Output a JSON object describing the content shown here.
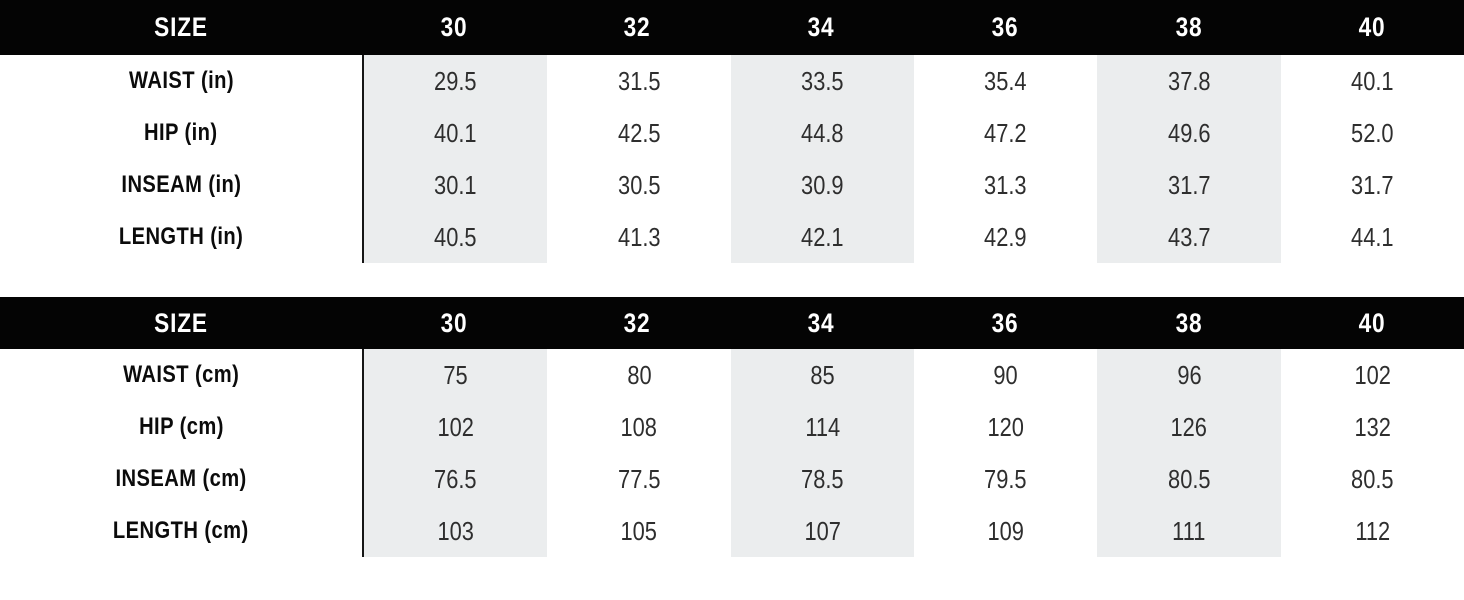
{
  "colors": {
    "header_bg": "#040404",
    "header_text": "#ffffff",
    "shaded_column_bg": "#ebedee",
    "label_text": "#0b0b0b",
    "value_text": "#2e2e2e"
  },
  "tables": [
    {
      "unit": "in",
      "header": {
        "size_label": "SIZE",
        "sizes": [
          "30",
          "32",
          "34",
          "36",
          "38",
          "40"
        ]
      },
      "rows": [
        {
          "label": "WAIST (in)",
          "values": [
            "29.5",
            "31.5",
            "33.5",
            "35.4",
            "37.8",
            "40.1"
          ]
        },
        {
          "label": "HIP (in)",
          "values": [
            "40.1",
            "42.5",
            "44.8",
            "47.2",
            "49.6",
            "52.0"
          ]
        },
        {
          "label": "INSEAM (in)",
          "values": [
            "30.1",
            "30.5",
            "30.9",
            "31.3",
            "31.7",
            "31.7"
          ]
        },
        {
          "label": "LENGTH (in)",
          "values": [
            "40.5",
            "41.3",
            "42.1",
            "42.9",
            "43.7",
            "44.1"
          ]
        }
      ]
    },
    {
      "unit": "cm",
      "header": {
        "size_label": "SIZE",
        "sizes": [
          "30",
          "32",
          "34",
          "36",
          "38",
          "40"
        ]
      },
      "rows": [
        {
          "label": "WAIST (cm)",
          "values": [
            "75",
            "80",
            "85",
            "90",
            "96",
            "102"
          ]
        },
        {
          "label": "HIP (cm)",
          "values": [
            "102",
            "108",
            "114",
            "120",
            "126",
            "132"
          ]
        },
        {
          "label": "INSEAM (cm)",
          "values": [
            "76.5",
            "77.5",
            "78.5",
            "79.5",
            "80.5",
            "80.5"
          ]
        },
        {
          "label": "LENGTH (cm)",
          "values": [
            "103",
            "105",
            "107",
            "109",
            "111",
            "112"
          ]
        }
      ]
    }
  ],
  "chart_data": [
    {
      "type": "table",
      "columns": [
        "SIZE",
        "30",
        "32",
        "34",
        "36",
        "38",
        "40"
      ],
      "rows": [
        [
          "WAIST (in)",
          29.5,
          31.5,
          33.5,
          35.4,
          37.8,
          40.1
        ],
        [
          "HIP (in)",
          40.1,
          42.5,
          44.8,
          47.2,
          49.6,
          52.0
        ],
        [
          "INSEAM (in)",
          30.1,
          30.5,
          30.9,
          31.3,
          31.7,
          31.7
        ],
        [
          "LENGTH (in)",
          40.5,
          41.3,
          42.1,
          42.9,
          43.7,
          44.1
        ]
      ],
      "layout": {
        "shaded_columns": [
          "30",
          "34",
          "38"
        ],
        "header_style": "black-bar"
      }
    },
    {
      "type": "table",
      "columns": [
        "SIZE",
        "30",
        "32",
        "34",
        "36",
        "38",
        "40"
      ],
      "rows": [
        [
          "WAIST (cm)",
          75,
          80,
          85,
          90,
          96,
          102
        ],
        [
          "HIP (cm)",
          102,
          108,
          114,
          120,
          126,
          132
        ],
        [
          "INSEAM (cm)",
          76.5,
          77.5,
          78.5,
          79.5,
          80.5,
          80.5
        ],
        [
          "LENGTH (cm)",
          103,
          105,
          107,
          109,
          111,
          112
        ]
      ],
      "layout": {
        "shaded_columns": [
          "30",
          "34",
          "38"
        ],
        "header_style": "black-bar"
      }
    }
  ]
}
